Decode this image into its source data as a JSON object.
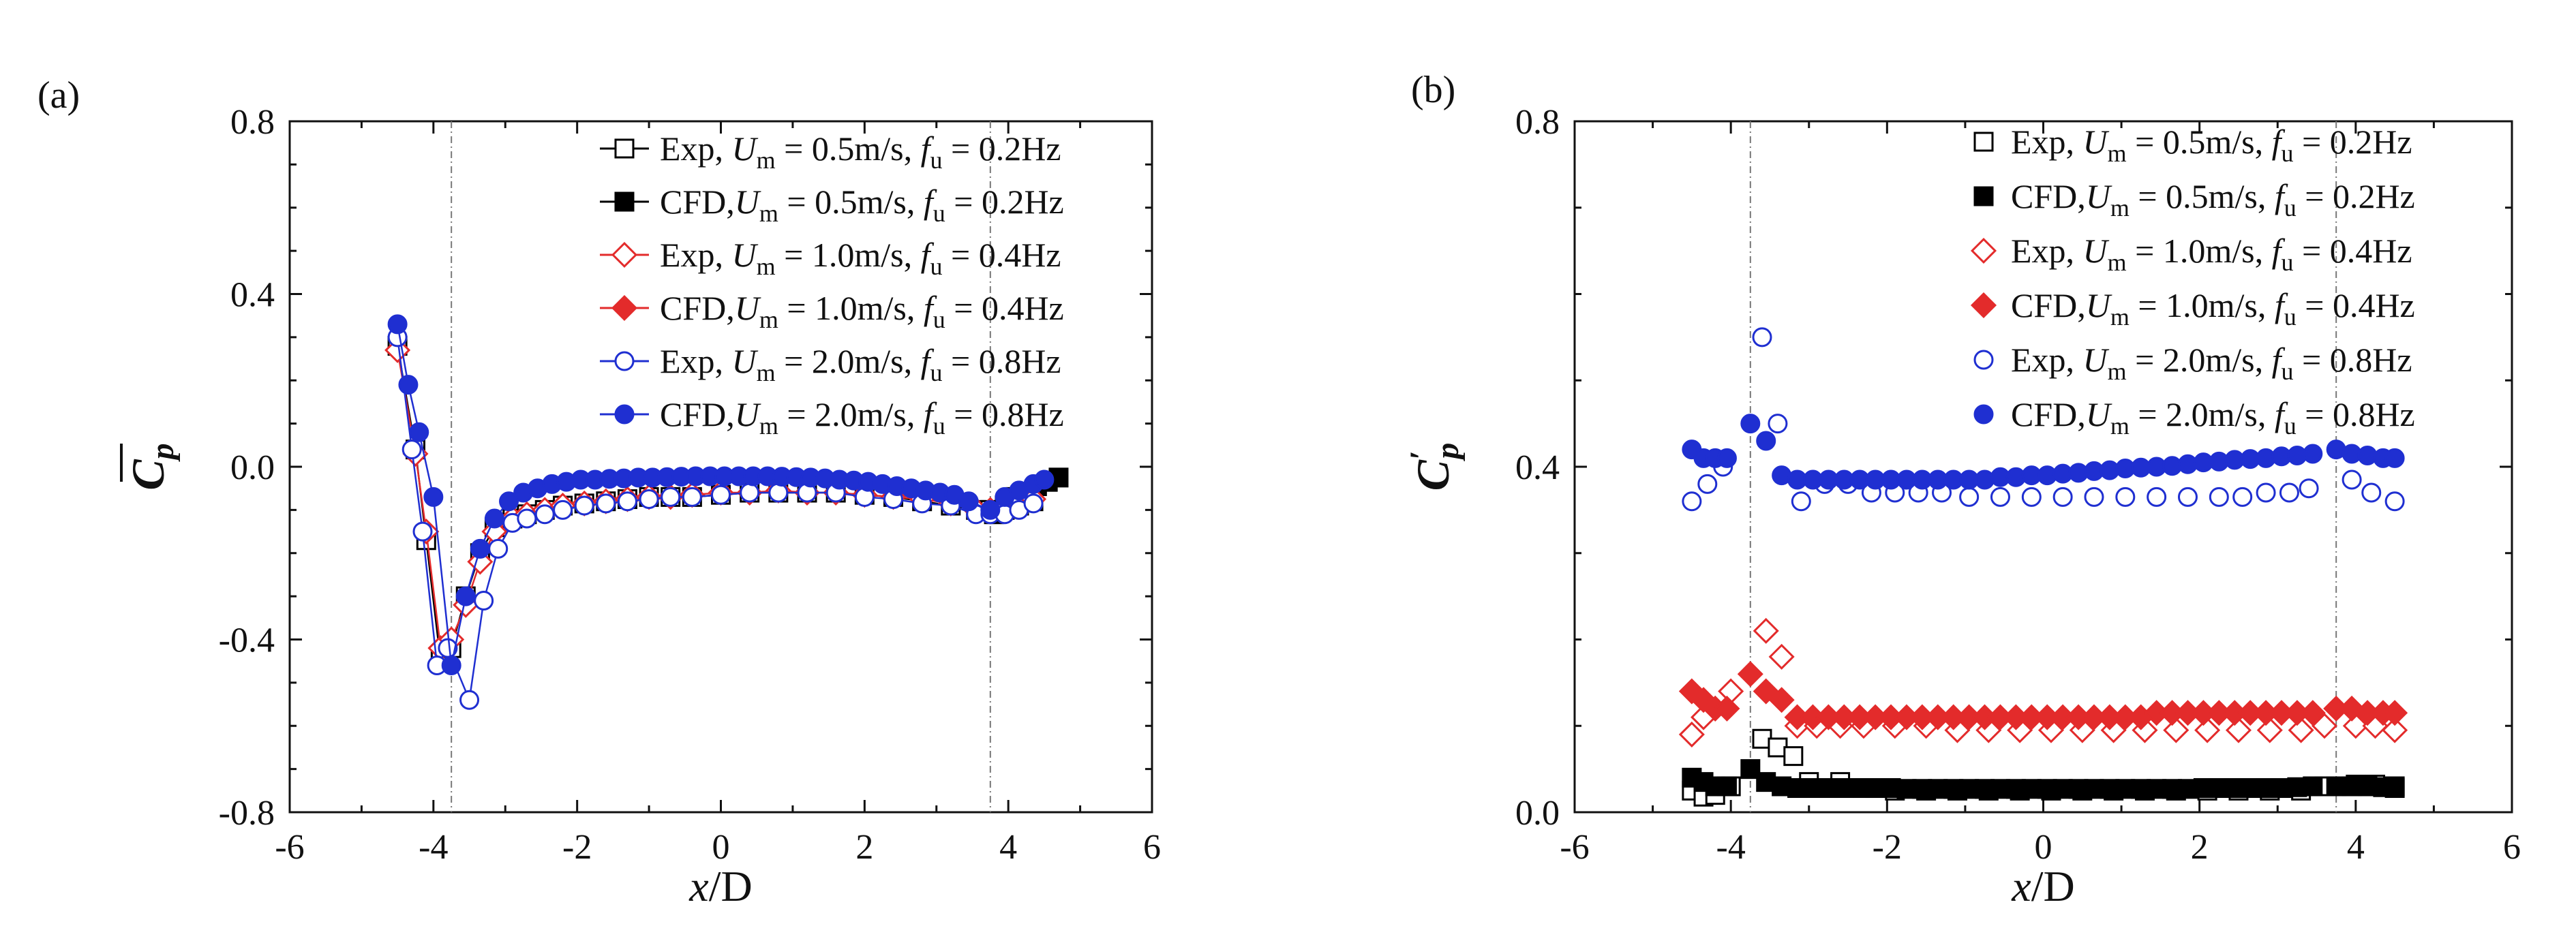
{
  "chart_data": [
    {
      "panel_label": "(a)",
      "type": "line",
      "xlabel": "x/D",
      "ylabel": "C̄p",
      "xlim": [
        -6,
        6
      ],
      "ylim": [
        -0.8,
        0.8
      ],
      "xticks": [
        "-6",
        "-4",
        "-2",
        "0",
        "2",
        "4",
        "6"
      ],
      "yticks": [
        "0.8",
        "0.4",
        "0.0",
        "-0.4",
        "-0.8"
      ],
      "xtick_values": [
        -6,
        -4,
        -2,
        0,
        2,
        4,
        6
      ],
      "ytick_values": [
        0.8,
        0.4,
        0.0,
        -0.4,
        -0.8
      ],
      "ref_lines_x": [
        -3.75,
        3.75
      ],
      "legend_position": "top-right",
      "series": [
        {
          "name": "Exp, Um = 0.5m/s, fu = 0.2Hz",
          "color": "#000000",
          "marker": "square-open",
          "x": [
            -4.5,
            -4.25,
            -4.1,
            -3.9,
            -3.75,
            -3.55,
            -3.35,
            -3.15,
            -2.9,
            -2.7,
            -2.45,
            -2.2,
            -1.9,
            -1.6,
            -1.3,
            -1.0,
            -0.7,
            -0.4,
            0.0,
            0.4,
            0.8,
            1.2,
            1.6,
            2.0,
            2.4,
            2.8,
            3.2,
            3.55,
            3.75,
            3.95,
            4.15,
            4.35
          ],
          "y": [
            0.28,
            0.04,
            -0.17,
            -0.45,
            -0.42,
            -0.3,
            -0.2,
            -0.14,
            -0.12,
            -0.11,
            -0.1,
            -0.09,
            -0.085,
            -0.08,
            -0.075,
            -0.07,
            -0.07,
            -0.07,
            -0.065,
            -0.06,
            -0.06,
            -0.06,
            -0.06,
            -0.065,
            -0.07,
            -0.08,
            -0.09,
            -0.1,
            -0.1,
            -0.1,
            -0.09,
            -0.08
          ]
        },
        {
          "name": "CFD,Um = 0.5m/s, fu = 0.2Hz",
          "color": "#000000",
          "marker": "square-filled",
          "x": [
            3.8,
            3.95,
            4.1,
            4.25,
            4.4,
            4.55,
            4.7
          ],
          "y": [
            -0.11,
            -0.09,
            -0.07,
            -0.06,
            -0.045,
            -0.035,
            -0.025
          ]
        },
        {
          "name": "Exp, Um = 1.0m/s, fu = 0.4Hz",
          "color": "#e32b2b",
          "marker": "diamond-open",
          "x": [
            -4.5,
            -4.25,
            -4.1,
            -3.9,
            -3.75,
            -3.55,
            -3.35,
            -3.15,
            -2.9,
            -2.7,
            -2.45,
            -2.2,
            -1.9,
            -1.6,
            -1.3,
            -1.0,
            -0.7,
            -0.4,
            0.0,
            0.4,
            0.8,
            1.2,
            1.6,
            2.0,
            2.4,
            2.8,
            3.2,
            3.55,
            3.75,
            3.95,
            4.15,
            4.35
          ],
          "y": [
            0.27,
            0.03,
            -0.15,
            -0.42,
            -0.4,
            -0.32,
            -0.22,
            -0.15,
            -0.12,
            -0.11,
            -0.1,
            -0.09,
            -0.085,
            -0.08,
            -0.075,
            -0.07,
            -0.07,
            -0.065,
            -0.06,
            -0.06,
            -0.055,
            -0.06,
            -0.06,
            -0.065,
            -0.07,
            -0.075,
            -0.085,
            -0.1,
            -0.1,
            -0.1,
            -0.085,
            -0.075
          ]
        },
        {
          "name": "CFD,Um = 1.0m/s, fu = 0.4Hz",
          "color": "#e32b2b",
          "marker": "diamond-filled",
          "x": [],
          "y": []
        },
        {
          "name": "Exp, Um = 2.0m/s, fu = 0.8Hz",
          "color": "#1f2fd1",
          "marker": "circle-open",
          "x": [
            -4.5,
            -4.3,
            -4.15,
            -3.95,
            -3.8,
            -3.5,
            -3.3,
            -3.1,
            -2.9,
            -2.7,
            -2.45,
            -2.2,
            -1.9,
            -1.6,
            -1.3,
            -1.0,
            -0.7,
            -0.4,
            0.0,
            0.4,
            0.8,
            1.2,
            1.6,
            2.0,
            2.4,
            2.8,
            3.2,
            3.55,
            3.75,
            3.95,
            4.15,
            4.35
          ],
          "y": [
            0.3,
            0.04,
            -0.15,
            -0.46,
            -0.42,
            -0.54,
            -0.31,
            -0.19,
            -0.13,
            -0.12,
            -0.11,
            -0.1,
            -0.09,
            -0.085,
            -0.08,
            -0.075,
            -0.07,
            -0.07,
            -0.065,
            -0.06,
            -0.06,
            -0.06,
            -0.06,
            -0.07,
            -0.075,
            -0.085,
            -0.09,
            -0.11,
            -0.11,
            -0.11,
            -0.1,
            -0.085
          ]
        },
        {
          "name": "CFD,Um = 2.0m/s, fu = 0.8Hz",
          "color": "#1f2fd1",
          "marker": "circle-filled",
          "x": [
            -4.5,
            -4.35,
            -4.2,
            -4.0,
            -3.75,
            -3.55,
            -3.35,
            -3.15,
            -2.95,
            -2.75,
            -2.55,
            -2.35,
            -2.15,
            -1.95,
            -1.75,
            -1.55,
            -1.35,
            -1.15,
            -0.95,
            -0.75,
            -0.55,
            -0.35,
            -0.15,
            0.05,
            0.25,
            0.45,
            0.65,
            0.85,
            1.05,
            1.25,
            1.45,
            1.65,
            1.85,
            2.05,
            2.25,
            2.45,
            2.65,
            2.85,
            3.05,
            3.25,
            3.45,
            3.75,
            3.95,
            4.15,
            4.35,
            4.5
          ],
          "y": [
            0.33,
            0.19,
            0.08,
            -0.07,
            -0.46,
            -0.3,
            -0.19,
            -0.12,
            -0.08,
            -0.06,
            -0.05,
            -0.04,
            -0.035,
            -0.03,
            -0.03,
            -0.028,
            -0.027,
            -0.025,
            -0.025,
            -0.024,
            -0.023,
            -0.022,
            -0.022,
            -0.022,
            -0.022,
            -0.022,
            -0.022,
            -0.023,
            -0.024,
            -0.025,
            -0.027,
            -0.03,
            -0.032,
            -0.035,
            -0.04,
            -0.045,
            -0.05,
            -0.055,
            -0.06,
            -0.065,
            -0.08,
            -0.1,
            -0.07,
            -0.055,
            -0.04,
            -0.03
          ]
        }
      ]
    },
    {
      "panel_label": "(b)",
      "type": "scatter",
      "xlabel": "x/D",
      "ylabel": "C′p",
      "xlim": [
        -6,
        6
      ],
      "ylim": [
        0.0,
        0.8
      ],
      "xticks": [
        "-6",
        "-4",
        "-2",
        "0",
        "2",
        "4",
        "6"
      ],
      "yticks": [
        "0.8",
        "0.4",
        "0.0"
      ],
      "xtick_values": [
        -6,
        -4,
        -2,
        0,
        2,
        4,
        6
      ],
      "ytick_values": [
        0.8,
        0.4,
        0.0
      ],
      "ref_lines_x": [
        -3.75,
        3.75
      ],
      "legend_position": "top-right",
      "series": [
        {
          "name": "Exp, Um = 0.5m/s, fu = 0.2Hz",
          "color": "#000000",
          "marker": "square-open",
          "x": [
            -4.5,
            -4.35,
            -4.2,
            -4.0,
            -3.6,
            -3.4,
            -3.2,
            -3.0,
            -2.6,
            -2.3,
            -1.9,
            -1.5,
            -1.1,
            -0.7,
            -0.3,
            0.1,
            0.5,
            0.9,
            1.3,
            1.7,
            2.1,
            2.5,
            2.9,
            3.3,
            3.6,
            4.0,
            4.25,
            4.5
          ],
          "y": [
            0.025,
            0.018,
            0.02,
            0.03,
            0.085,
            0.075,
            0.065,
            0.035,
            0.035,
            0.028,
            0.025,
            0.025,
            0.025,
            0.025,
            0.025,
            0.025,
            0.025,
            0.025,
            0.025,
            0.025,
            0.025,
            0.025,
            0.025,
            0.025,
            0.03,
            0.032,
            0.032,
            0.03
          ]
        },
        {
          "name": "CFD,Um = 0.5m/s, fu = 0.2Hz",
          "color": "#000000",
          "marker": "square-filled",
          "x": [
            -4.5,
            -4.35,
            -4.2,
            -4.05,
            -3.75,
            -3.55,
            -3.35,
            -3.15,
            -2.95,
            -2.75,
            -2.55,
            -2.35,
            -2.15,
            -1.95,
            -1.75,
            -1.55,
            -1.35,
            -1.15,
            -0.95,
            -0.75,
            -0.55,
            -0.35,
            -0.15,
            0.05,
            0.25,
            0.45,
            0.65,
            0.85,
            1.05,
            1.25,
            1.45,
            1.65,
            1.85,
            2.05,
            2.25,
            2.45,
            2.65,
            2.85,
            3.05,
            3.25,
            3.45,
            3.75,
            3.95,
            4.15,
            4.35,
            4.5
          ],
          "y": [
            0.04,
            0.035,
            0.03,
            0.03,
            0.05,
            0.035,
            0.03,
            0.028,
            0.028,
            0.028,
            0.028,
            0.028,
            0.028,
            0.028,
            0.027,
            0.027,
            0.027,
            0.027,
            0.027,
            0.027,
            0.027,
            0.027,
            0.027,
            0.027,
            0.027,
            0.027,
            0.027,
            0.027,
            0.027,
            0.027,
            0.027,
            0.027,
            0.027,
            0.028,
            0.028,
            0.028,
            0.028,
            0.028,
            0.028,
            0.029,
            0.03,
            0.03,
            0.03,
            0.03,
            0.029,
            0.028
          ]
        },
        {
          "name": "Exp, Um = 1.0m/s, fu = 0.4Hz",
          "color": "#e32b2b",
          "marker": "diamond-open",
          "x": [
            -4.5,
            -4.35,
            -4.2,
            -4.0,
            -3.55,
            -3.35,
            -3.15,
            -2.9,
            -2.6,
            -2.3,
            -1.9,
            -1.5,
            -1.1,
            -0.7,
            -0.3,
            0.1,
            0.5,
            0.9,
            1.3,
            1.7,
            2.1,
            2.5,
            2.9,
            3.3,
            3.6,
            4.0,
            4.25,
            4.5
          ],
          "y": [
            0.09,
            0.11,
            0.12,
            0.14,
            0.21,
            0.18,
            0.1,
            0.1,
            0.1,
            0.1,
            0.1,
            0.1,
            0.095,
            0.095,
            0.095,
            0.095,
            0.095,
            0.095,
            0.095,
            0.095,
            0.095,
            0.095,
            0.095,
            0.095,
            0.1,
            0.1,
            0.1,
            0.095
          ]
        },
        {
          "name": "CFD,Um = 1.0m/s, fu = 0.4Hz",
          "color": "#e32b2b",
          "marker": "diamond-filled",
          "x": [
            -4.5,
            -4.35,
            -4.2,
            -4.05,
            -3.75,
            -3.55,
            -3.35,
            -3.15,
            -2.95,
            -2.75,
            -2.55,
            -2.35,
            -2.15,
            -1.95,
            -1.75,
            -1.55,
            -1.35,
            -1.15,
            -0.95,
            -0.75,
            -0.55,
            -0.35,
            -0.15,
            0.05,
            0.25,
            0.45,
            0.65,
            0.85,
            1.05,
            1.25,
            1.45,
            1.65,
            1.85,
            2.05,
            2.25,
            2.45,
            2.65,
            2.85,
            3.05,
            3.25,
            3.45,
            3.75,
            3.95,
            4.15,
            4.35,
            4.5
          ],
          "y": [
            0.14,
            0.13,
            0.12,
            0.12,
            0.16,
            0.14,
            0.13,
            0.11,
            0.11,
            0.11,
            0.11,
            0.11,
            0.11,
            0.11,
            0.11,
            0.11,
            0.11,
            0.11,
            0.11,
            0.11,
            0.11,
            0.11,
            0.11,
            0.11,
            0.11,
            0.11,
            0.11,
            0.11,
            0.11,
            0.11,
            0.115,
            0.115,
            0.115,
            0.115,
            0.115,
            0.115,
            0.115,
            0.115,
            0.115,
            0.115,
            0.115,
            0.12,
            0.12,
            0.115,
            0.115,
            0.115
          ]
        },
        {
          "name": "Exp, Um = 2.0m/s, fu = 0.8Hz",
          "color": "#1f2fd1",
          "marker": "circle-open",
          "x": [
            -4.5,
            -4.3,
            -4.1,
            -3.6,
            -3.4,
            -3.1,
            -2.8,
            -2.5,
            -2.2,
            -1.9,
            -1.6,
            -1.3,
            -0.95,
            -0.55,
            -0.15,
            0.25,
            0.65,
            1.05,
            1.45,
            1.85,
            2.25,
            2.55,
            2.85,
            3.15,
            3.4,
            3.95,
            4.2,
            4.5
          ],
          "y": [
            0.36,
            0.38,
            0.4,
            0.55,
            0.45,
            0.36,
            0.38,
            0.38,
            0.37,
            0.37,
            0.37,
            0.37,
            0.365,
            0.365,
            0.365,
            0.365,
            0.365,
            0.365,
            0.365,
            0.365,
            0.365,
            0.365,
            0.37,
            0.37,
            0.375,
            0.385,
            0.37,
            0.36
          ]
        },
        {
          "name": "CFD,Um = 2.0m/s, fu = 0.8Hz",
          "color": "#1f2fd1",
          "marker": "circle-filled",
          "x": [
            -4.5,
            -4.35,
            -4.2,
            -4.05,
            -3.75,
            -3.55,
            -3.35,
            -3.15,
            -2.95,
            -2.75,
            -2.55,
            -2.35,
            -2.15,
            -1.95,
            -1.75,
            -1.55,
            -1.35,
            -1.15,
            -0.95,
            -0.75,
            -0.55,
            -0.35,
            -0.15,
            0.05,
            0.25,
            0.45,
            0.65,
            0.85,
            1.05,
            1.25,
            1.45,
            1.65,
            1.85,
            2.05,
            2.25,
            2.45,
            2.65,
            2.85,
            3.05,
            3.25,
            3.45,
            3.75,
            3.95,
            4.15,
            4.35,
            4.5
          ],
          "y": [
            0.42,
            0.41,
            0.41,
            0.41,
            0.45,
            0.43,
            0.39,
            0.385,
            0.385,
            0.385,
            0.385,
            0.385,
            0.385,
            0.385,
            0.385,
            0.385,
            0.385,
            0.385,
            0.385,
            0.385,
            0.388,
            0.388,
            0.39,
            0.39,
            0.392,
            0.393,
            0.395,
            0.396,
            0.398,
            0.399,
            0.4,
            0.401,
            0.403,
            0.405,
            0.406,
            0.408,
            0.409,
            0.41,
            0.412,
            0.413,
            0.415,
            0.42,
            0.415,
            0.413,
            0.41,
            0.41
          ]
        }
      ]
    }
  ]
}
